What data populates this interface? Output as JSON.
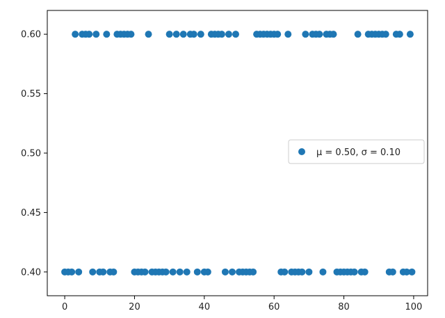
{
  "chart_data": {
    "type": "scatter",
    "title": "",
    "xlabel": "",
    "ylabel": "",
    "xlim": [
      -5,
      104
    ],
    "ylim": [
      0.38,
      0.62
    ],
    "x_ticks": [
      0,
      20,
      40,
      60,
      80,
      100
    ],
    "x_tick_labels": [
      "0",
      "20",
      "40",
      "60",
      "80",
      "100"
    ],
    "y_ticks": [
      0.4,
      0.45,
      0.5,
      0.55,
      0.6
    ],
    "y_tick_labels": [
      "0.40",
      "0.45",
      "0.50",
      "0.55",
      "0.60"
    ],
    "grid": false,
    "legend_placement": "center-right",
    "series": [
      {
        "name": "μ = 0.50, σ = 0.10",
        "color": "#1f77b4",
        "points": [
          [
            0,
            0.4
          ],
          [
            1,
            0.4
          ],
          [
            2,
            0.4
          ],
          [
            3,
            0.6
          ],
          [
            4,
            0.4
          ],
          [
            5,
            0.6
          ],
          [
            6,
            0.6
          ],
          [
            7,
            0.6
          ],
          [
            8,
            0.4
          ],
          [
            9,
            0.6
          ],
          [
            10,
            0.4
          ],
          [
            11,
            0.4
          ],
          [
            12,
            0.6
          ],
          [
            13,
            0.4
          ],
          [
            14,
            0.4
          ],
          [
            15,
            0.6
          ],
          [
            16,
            0.6
          ],
          [
            17,
            0.6
          ],
          [
            18,
            0.6
          ],
          [
            19,
            0.6
          ],
          [
            20,
            0.4
          ],
          [
            21,
            0.4
          ],
          [
            22,
            0.4
          ],
          [
            23,
            0.4
          ],
          [
            24,
            0.6
          ],
          [
            25,
            0.4
          ],
          [
            26,
            0.4
          ],
          [
            27,
            0.4
          ],
          [
            28,
            0.4
          ],
          [
            29,
            0.4
          ],
          [
            30,
            0.6
          ],
          [
            31,
            0.4
          ],
          [
            32,
            0.6
          ],
          [
            33,
            0.4
          ],
          [
            34,
            0.6
          ],
          [
            35,
            0.4
          ],
          [
            36,
            0.6
          ],
          [
            37,
            0.6
          ],
          [
            38,
            0.4
          ],
          [
            39,
            0.6
          ],
          [
            40,
            0.4
          ],
          [
            41,
            0.4
          ],
          [
            42,
            0.6
          ],
          [
            43,
            0.6
          ],
          [
            44,
            0.6
          ],
          [
            45,
            0.6
          ],
          [
            46,
            0.4
          ],
          [
            47,
            0.6
          ],
          [
            48,
            0.4
          ],
          [
            49,
            0.6
          ],
          [
            50,
            0.4
          ],
          [
            51,
            0.4
          ],
          [
            52,
            0.4
          ],
          [
            53,
            0.4
          ],
          [
            54,
            0.4
          ],
          [
            55,
            0.6
          ],
          [
            56,
            0.6
          ],
          [
            57,
            0.6
          ],
          [
            58,
            0.6
          ],
          [
            59,
            0.6
          ],
          [
            60,
            0.6
          ],
          [
            61,
            0.6
          ],
          [
            62,
            0.4
          ],
          [
            63,
            0.4
          ],
          [
            64,
            0.6
          ],
          [
            65,
            0.4
          ],
          [
            66,
            0.4
          ],
          [
            67,
            0.4
          ],
          [
            68,
            0.4
          ],
          [
            69,
            0.6
          ],
          [
            70,
            0.4
          ],
          [
            71,
            0.6
          ],
          [
            72,
            0.6
          ],
          [
            73,
            0.6
          ],
          [
            74,
            0.4
          ],
          [
            75,
            0.6
          ],
          [
            76,
            0.6
          ],
          [
            77,
            0.6
          ],
          [
            78,
            0.4
          ],
          [
            79,
            0.4
          ],
          [
            80,
            0.4
          ],
          [
            81,
            0.4
          ],
          [
            82,
            0.4
          ],
          [
            83,
            0.4
          ],
          [
            84,
            0.6
          ],
          [
            85,
            0.4
          ],
          [
            86,
            0.4
          ],
          [
            87,
            0.6
          ],
          [
            88,
            0.6
          ],
          [
            89,
            0.6
          ],
          [
            90,
            0.6
          ],
          [
            91,
            0.6
          ],
          [
            92,
            0.6
          ],
          [
            93,
            0.4
          ],
          [
            94,
            0.4
          ],
          [
            95,
            0.6
          ],
          [
            96,
            0.6
          ],
          [
            97,
            0.4
          ],
          [
            98,
            0.4
          ],
          [
            99,
            0.6
          ],
          [
            99.5,
            0.4
          ]
        ]
      }
    ]
  }
}
